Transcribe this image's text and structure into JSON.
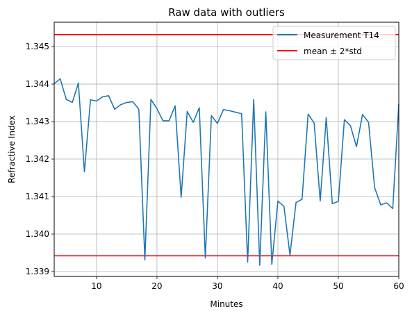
{
  "chart_data": {
    "type": "line",
    "title": "Raw data with outliers",
    "xlabel": "Minutes",
    "ylabel": "Refractive Index",
    "xlim": [
      3,
      60
    ],
    "ylim": [
      1.33887,
      1.34565
    ],
    "x_ticks": [
      10,
      20,
      30,
      40,
      50,
      60
    ],
    "y_ticks": [
      1.339,
      1.34,
      1.341,
      1.342,
      1.343,
      1.344,
      1.345
    ],
    "x_tick_labels": [
      "10",
      "20",
      "30",
      "40",
      "50",
      "60"
    ],
    "y_tick_labels": [
      "1.339",
      "1.340",
      "1.341",
      "1.342",
      "1.343",
      "1.344",
      "1.345"
    ],
    "grid": true,
    "legend_position": "top-right",
    "series": [
      {
        "name": "Measurement T14",
        "color": "#1f77b4",
        "x": [
          3,
          4,
          5,
          6,
          7,
          8,
          9,
          10,
          11,
          12,
          13,
          14,
          15,
          16,
          17,
          18,
          19,
          20,
          21,
          22,
          23,
          24,
          25,
          26,
          27,
          28,
          29,
          30,
          31,
          32,
          33,
          34,
          35,
          36,
          37,
          38,
          39,
          40,
          41,
          42,
          43,
          44,
          45,
          46,
          47,
          48,
          49,
          50,
          51,
          52,
          53,
          54,
          55,
          56,
          57,
          58,
          59,
          60
        ],
        "y": [
          1.34401,
          1.34414,
          1.34359,
          1.34351,
          1.34403,
          1.34166,
          1.34358,
          1.34355,
          1.34366,
          1.34369,
          1.34333,
          1.34345,
          1.34351,
          1.34353,
          1.34333,
          1.33931,
          1.34359,
          1.34334,
          1.34302,
          1.34302,
          1.34342,
          1.34098,
          1.34327,
          1.34298,
          1.34337,
          1.33936,
          1.34316,
          1.34295,
          1.34332,
          1.34329,
          1.34325,
          1.34321,
          1.33925,
          1.34359,
          1.33917,
          1.34326,
          1.33919,
          1.34088,
          1.34074,
          1.33944,
          1.34084,
          1.34093,
          1.3432,
          1.34296,
          1.34088,
          1.34311,
          1.34081,
          1.34087,
          1.34305,
          1.34289,
          1.34233,
          1.34319,
          1.34298,
          1.34124,
          1.34078,
          1.34083,
          1.34068,
          1.34347
        ]
      }
    ],
    "reference_lines": [
      {
        "name": "mean ± 2*std",
        "color": "#ff0000",
        "y": 1.34532
      },
      {
        "y": 1.33942,
        "color": "#ff0000"
      }
    ]
  }
}
